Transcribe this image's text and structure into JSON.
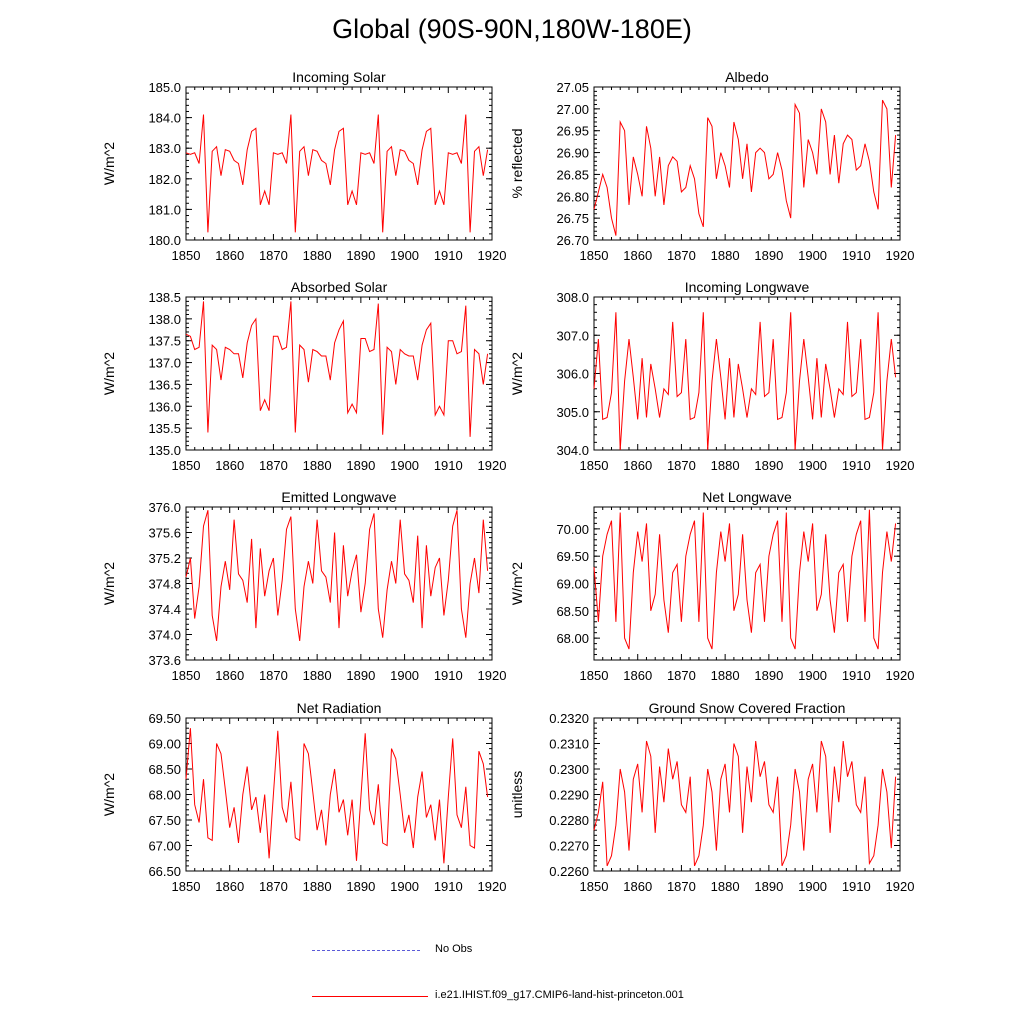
{
  "title": "Global (90S-90N,180W-180E)",
  "colors": {
    "model_line": "#ff0000",
    "obs_line": "#5a5ad8",
    "axis": "#000000"
  },
  "legend": {
    "obs_label": "No Obs",
    "run_label": "i.e21.IHIST.f09_g17.CMIP6-land-hist-princeton.001"
  },
  "chart_data": [
    {
      "type": "line",
      "title": "Incoming Solar",
      "ylabel": "W/m^2",
      "xlim": [
        1850,
        1920
      ],
      "ylim": [
        180.0,
        185.0
      ],
      "xticks": [
        1850,
        1860,
        1870,
        1880,
        1890,
        1900,
        1910,
        1920
      ],
      "yticks": [
        "180.0",
        "181.0",
        "182.0",
        "183.0",
        "184.0",
        "185.0"
      ],
      "x_start": 1850,
      "series": [
        {
          "values": [
            182.85,
            182.8,
            182.85,
            182.5,
            184.1,
            180.25,
            182.9,
            183.05,
            182.1,
            182.95,
            182.9,
            182.6,
            182.5,
            181.8,
            182.95,
            183.55,
            183.65,
            181.15,
            181.6,
            181.15,
            182.85,
            182.8,
            182.85,
            182.5,
            184.1,
            180.25,
            182.9,
            183.05,
            182.1,
            182.95,
            182.9,
            182.6,
            182.5,
            181.8,
            182.95,
            183.55,
            183.65,
            181.15,
            181.6,
            181.15,
            182.85,
            182.8,
            182.85,
            182.5,
            184.1,
            180.25,
            182.9,
            183.05,
            182.1,
            182.95,
            182.9,
            182.6,
            182.5,
            181.8,
            182.95,
            183.55,
            183.65,
            181.15,
            181.6,
            181.15,
            182.85,
            182.8,
            182.85,
            182.5,
            184.1,
            180.25,
            182.9,
            183.05,
            182.1,
            182.95
          ]
        }
      ]
    },
    {
      "type": "line",
      "title": "Albedo",
      "ylabel": "% reflected",
      "xlim": [
        1850,
        1920
      ],
      "ylim": [
        26.7,
        27.05
      ],
      "xticks": [
        1850,
        1860,
        1870,
        1880,
        1890,
        1900,
        1910,
        1920
      ],
      "yticks": [
        "26.70",
        "26.75",
        "26.80",
        "26.85",
        "26.90",
        "26.95",
        "27.00",
        "27.05"
      ],
      "x_start": 1850,
      "series": [
        {
          "values": [
            26.77,
            26.81,
            26.85,
            26.82,
            26.75,
            26.71,
            26.97,
            26.95,
            26.78,
            26.89,
            26.85,
            26.8,
            26.96,
            26.91,
            26.8,
            26.89,
            26.78,
            26.87,
            26.89,
            26.88,
            26.81,
            26.82,
            26.87,
            26.84,
            26.76,
            26.73,
            26.98,
            26.96,
            26.84,
            26.9,
            26.87,
            26.82,
            26.97,
            26.93,
            26.84,
            26.92,
            26.81,
            26.9,
            26.91,
            26.9,
            26.84,
            26.85,
            26.9,
            26.86,
            26.79,
            26.75,
            27.01,
            26.99,
            26.82,
            26.93,
            26.9,
            26.85,
            27.0,
            26.97,
            26.85,
            26.94,
            26.83,
            26.92,
            26.94,
            26.93,
            26.86,
            26.87,
            26.92,
            26.88,
            26.81,
            26.77,
            27.02,
            27.0,
            26.82,
            26.94
          ]
        }
      ]
    },
    {
      "type": "line",
      "title": "Absorbed Solar",
      "ylabel": "W/m^2",
      "xlim": [
        1850,
        1920
      ],
      "ylim": [
        135.0,
        138.5
      ],
      "xticks": [
        1850,
        1860,
        1870,
        1880,
        1890,
        1900,
        1910,
        1920
      ],
      "yticks": [
        "135.0",
        "135.5",
        "136.0",
        "136.5",
        "137.0",
        "137.5",
        "138.0",
        "138.5"
      ],
      "x_start": 1850,
      "series": [
        {
          "values": [
            137.65,
            137.6,
            137.3,
            137.35,
            138.4,
            135.4,
            137.4,
            137.3,
            136.6,
            137.35,
            137.3,
            137.2,
            137.2,
            136.65,
            137.45,
            137.85,
            138.0,
            135.9,
            136.15,
            135.9,
            137.6,
            137.6,
            137.3,
            137.35,
            138.4,
            135.4,
            137.4,
            137.3,
            136.55,
            137.3,
            137.25,
            137.15,
            137.15,
            136.6,
            137.45,
            137.75,
            137.95,
            135.85,
            136.05,
            135.85,
            137.55,
            137.55,
            137.25,
            137.3,
            138.35,
            135.35,
            137.35,
            137.25,
            136.5,
            137.3,
            137.2,
            137.15,
            137.15,
            136.6,
            137.4,
            137.75,
            137.9,
            135.8,
            136.0,
            135.8,
            137.5,
            137.5,
            137.2,
            137.25,
            138.3,
            135.3,
            137.3,
            137.2,
            136.5,
            137.2
          ]
        }
      ]
    },
    {
      "type": "line",
      "title": "Incoming Longwave",
      "ylabel": "W/m^2",
      "xlim": [
        1850,
        1920
      ],
      "ylim": [
        304.0,
        308.0
      ],
      "xticks": [
        1850,
        1860,
        1870,
        1880,
        1890,
        1900,
        1910,
        1920
      ],
      "yticks": [
        "304.0",
        "305.0",
        "306.0",
        "307.0",
        "308.0"
      ],
      "x_start": 1850,
      "series": [
        {
          "values": [
            305.6,
            306.9,
            304.8,
            304.85,
            305.5,
            307.6,
            304.0,
            305.8,
            306.9,
            305.9,
            304.8,
            306.4,
            304.85,
            306.25,
            305.6,
            304.85,
            305.6,
            305.45,
            307.35,
            305.4,
            305.5,
            306.9,
            304.8,
            304.85,
            305.5,
            307.6,
            304.0,
            305.8,
            306.9,
            305.9,
            304.8,
            306.4,
            304.85,
            306.25,
            305.6,
            304.85,
            305.6,
            305.45,
            307.35,
            305.4,
            305.5,
            306.9,
            304.8,
            304.85,
            305.5,
            307.6,
            304.0,
            305.8,
            306.9,
            305.9,
            304.8,
            306.4,
            304.85,
            306.25,
            305.6,
            304.85,
            305.6,
            305.45,
            307.35,
            305.4,
            305.5,
            306.9,
            304.8,
            304.85,
            305.5,
            307.6,
            304.0,
            305.8,
            306.9,
            305.9
          ]
        }
      ]
    },
    {
      "type": "line",
      "title": "Emitted Longwave",
      "ylabel": "W/m^2",
      "xlim": [
        1850,
        1920
      ],
      "ylim": [
        373.6,
        376.0
      ],
      "xticks": [
        1850,
        1860,
        1870,
        1880,
        1890,
        1900,
        1910,
        1920
      ],
      "yticks": [
        "373.6",
        "374.0",
        "374.4",
        "374.8",
        "375.2",
        "375.6",
        "376.0"
      ],
      "x_start": 1850,
      "series": [
        {
          "values": [
            374.9,
            375.2,
            374.25,
            374.75,
            375.7,
            375.95,
            374.3,
            373.9,
            374.75,
            375.15,
            374.7,
            375.8,
            374.95,
            374.85,
            374.5,
            375.5,
            374.1,
            375.35,
            374.6,
            375.0,
            375.2,
            374.3,
            374.85,
            375.65,
            375.85,
            374.4,
            373.9,
            374.75,
            375.15,
            374.8,
            375.8,
            375.0,
            374.9,
            374.5,
            375.6,
            374.1,
            375.4,
            374.6,
            375.0,
            375.25,
            374.35,
            374.8,
            375.65,
            375.9,
            374.4,
            373.95,
            374.7,
            375.15,
            374.8,
            375.8,
            374.95,
            374.85,
            374.5,
            375.55,
            374.1,
            375.4,
            374.6,
            375.05,
            375.2,
            374.3,
            374.85,
            375.7,
            375.95,
            374.4,
            373.95,
            374.8,
            375.2,
            374.65,
            375.8,
            375.0
          ]
        }
      ]
    },
    {
      "type": "line",
      "title": "Net Longwave",
      "ylabel": "W/m^2",
      "xlim": [
        1850,
        1920
      ],
      "ylim": [
        67.6,
        70.4
      ],
      "xticks": [
        1850,
        1860,
        1870,
        1880,
        1890,
        1900,
        1910,
        1920
      ],
      "yticks": [
        "68.00",
        "68.50",
        "69.00",
        "69.50",
        "70.00"
      ],
      "x_start": 1850,
      "series": [
        {
          "values": [
            69.3,
            68.3,
            69.5,
            69.9,
            70.15,
            68.3,
            70.3,
            68.0,
            67.8,
            69.2,
            69.95,
            69.4,
            70.1,
            68.5,
            68.8,
            69.9,
            68.7,
            68.1,
            69.2,
            69.35,
            68.3,
            69.5,
            69.9,
            70.15,
            68.3,
            70.3,
            68.0,
            67.8,
            69.2,
            69.95,
            69.4,
            70.1,
            68.5,
            68.8,
            69.9,
            68.7,
            68.1,
            69.2,
            69.35,
            68.3,
            69.5,
            69.9,
            70.15,
            68.3,
            70.3,
            68.0,
            67.8,
            69.2,
            69.95,
            69.4,
            70.1,
            68.5,
            68.8,
            69.9,
            68.7,
            68.1,
            69.2,
            69.35,
            68.3,
            69.5,
            69.9,
            70.15,
            68.3,
            70.35,
            68.0,
            67.8,
            69.2,
            69.95,
            69.4,
            70.1
          ]
        }
      ]
    },
    {
      "type": "line",
      "title": "Net Radiation",
      "ylabel": "W/m^2",
      "xlim": [
        1850,
        1920
      ],
      "ylim": [
        66.5,
        69.5
      ],
      "xticks": [
        1850,
        1860,
        1870,
        1880,
        1890,
        1900,
        1910,
        1920
      ],
      "yticks": [
        "66.50",
        "67.00",
        "67.50",
        "68.00",
        "68.50",
        "69.00",
        "69.50"
      ],
      "x_start": 1850,
      "series": [
        {
          "values": [
            68.3,
            69.3,
            67.8,
            67.45,
            68.3,
            67.15,
            67.1,
            69.0,
            68.8,
            68.1,
            67.35,
            67.75,
            67.05,
            68.0,
            68.55,
            67.7,
            67.95,
            67.25,
            68.0,
            66.75,
            68.0,
            69.25,
            67.75,
            67.45,
            68.25,
            67.15,
            67.1,
            69.0,
            68.8,
            68.05,
            67.3,
            67.7,
            67.0,
            68.0,
            68.5,
            67.65,
            67.9,
            67.2,
            67.9,
            66.7,
            67.95,
            69.2,
            67.7,
            67.4,
            68.2,
            67.05,
            67.0,
            68.9,
            68.7,
            68.0,
            67.25,
            67.6,
            66.95,
            67.95,
            68.45,
            67.55,
            67.8,
            67.1,
            67.9,
            66.65,
            67.95,
            69.1,
            67.6,
            67.35,
            68.15,
            67.0,
            66.95,
            68.85,
            68.6,
            67.95
          ]
        }
      ]
    },
    {
      "type": "line",
      "title": "Ground Snow Covered Fraction",
      "ylabel": "unitless",
      "xlim": [
        1850,
        1920
      ],
      "ylim": [
        0.226,
        0.232
      ],
      "xticks": [
        1850,
        1860,
        1870,
        1880,
        1890,
        1900,
        1910,
        1920
      ],
      "yticks": [
        "0.2260",
        "0.2270",
        "0.2280",
        "0.2290",
        "0.2300",
        "0.2310",
        "0.2320"
      ],
      "x_start": 1850,
      "series": [
        {
          "values": [
            0.2276,
            0.2283,
            0.2295,
            0.2262,
            0.2266,
            0.2278,
            0.23,
            0.2291,
            0.2268,
            0.2296,
            0.2302,
            0.2283,
            0.2311,
            0.2305,
            0.2275,
            0.2301,
            0.2287,
            0.2308,
            0.2296,
            0.2303,
            0.2286,
            0.2283,
            0.2297,
            0.2262,
            0.2266,
            0.2278,
            0.23,
            0.2291,
            0.2268,
            0.2296,
            0.2302,
            0.2283,
            0.231,
            0.2305,
            0.2275,
            0.2301,
            0.2287,
            0.2311,
            0.2297,
            0.2303,
            0.2286,
            0.2283,
            0.2297,
            0.2262,
            0.2266,
            0.2278,
            0.23,
            0.2291,
            0.2268,
            0.2296,
            0.2302,
            0.2283,
            0.2311,
            0.2305,
            0.2275,
            0.2301,
            0.2287,
            0.2311,
            0.2297,
            0.2303,
            0.2286,
            0.2283,
            0.2297,
            0.2263,
            0.2266,
            0.2278,
            0.23,
            0.2291,
            0.2269,
            0.2297
          ]
        }
      ]
    }
  ]
}
